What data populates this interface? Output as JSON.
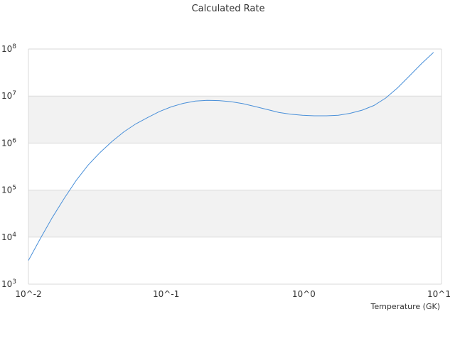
{
  "chart_data": {
    "type": "line",
    "title": "Calculated Rate",
    "xlabel": "Temperature (GK)",
    "ylabel": "",
    "x_scale": "log",
    "y_scale": "log",
    "xlim": [
      0.01,
      10
    ],
    "ylim": [
      1000,
      100000000
    ],
    "x_ticks": [
      {
        "value": 0.01,
        "label": "10^-2"
      },
      {
        "value": 0.1,
        "label": "10^-1"
      },
      {
        "value": 1,
        "label": "10^0"
      },
      {
        "value": 10,
        "label": "10^1"
      }
    ],
    "y_ticks": [
      {
        "value": 1000,
        "base": "10",
        "exp": "3"
      },
      {
        "value": 10000,
        "base": "10",
        "exp": "4"
      },
      {
        "value": 100000,
        "base": "10",
        "exp": "5"
      },
      {
        "value": 1000000,
        "base": "10",
        "exp": "6"
      },
      {
        "value": 10000000,
        "base": "10",
        "exp": "7"
      },
      {
        "value": 100000000,
        "base": "10",
        "exp": "8"
      }
    ],
    "grid": true,
    "band_color": "#f2f2f2",
    "line_color": "#4a90d9",
    "series": [
      {
        "x": [
          0.01,
          0.0122,
          0.0149,
          0.0182,
          0.0222,
          0.0271,
          0.0331,
          0.0404,
          0.0493,
          0.0601,
          0.0734,
          0.0896,
          0.109,
          0.133,
          0.163,
          0.199,
          0.242,
          0.296,
          0.361,
          0.441,
          0.538,
          0.657,
          0.801,
          0.978,
          1.19,
          1.46,
          1.78,
          2.17,
          2.65,
          3.23,
          3.94,
          4.81,
          5.87,
          7.17,
          8.75
        ],
        "y": [
          3200,
          9300,
          26000,
          67000,
          160000,
          340000,
          630000,
          1080000,
          1730000,
          2550000,
          3500000,
          4700000,
          5900000,
          7000000,
          7800000,
          8100000,
          8000000,
          7600000,
          6900000,
          6000000,
          5200000,
          4500000,
          4100000,
          3900000,
          3800000,
          3800000,
          3900000,
          4300000,
          5000000,
          6300000,
          9100000,
          15000000,
          27000000,
          49000000,
          85000000
        ]
      }
    ]
  }
}
